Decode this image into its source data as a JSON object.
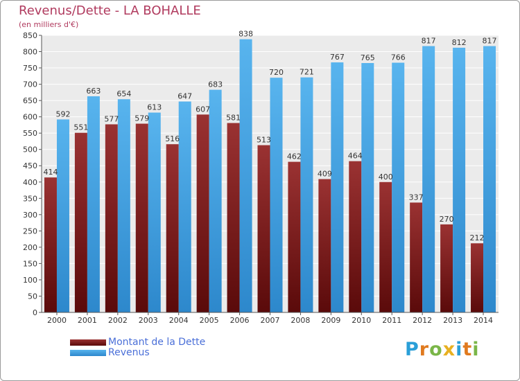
{
  "header": {
    "title": "Revenus/Dette - LA BOHALLE",
    "subtitle": "(en milliers d'€)"
  },
  "chart_data": {
    "type": "bar",
    "categories": [
      "2000",
      "2001",
      "2002",
      "2003",
      "2004",
      "2005",
      "2006",
      "2007",
      "2008",
      "2009",
      "2010",
      "2011",
      "2012",
      "2013",
      "2014"
    ],
    "series": [
      {
        "name": "Montant de la Dette",
        "color": "#8b2a2a",
        "values": [
          414,
          551,
          577,
          579,
          516,
          607,
          581,
          513,
          462,
          409,
          464,
          400,
          337,
          270,
          212
        ]
      },
      {
        "name": "Revenus",
        "color": "#4aa8e8",
        "values": [
          592,
          663,
          654,
          613,
          647,
          683,
          838,
          720,
          721,
          767,
          765,
          766,
          817,
          812,
          817
        ]
      }
    ],
    "ylim": [
      0,
      850
    ],
    "yticks": [
      0,
      50,
      100,
      150,
      200,
      250,
      300,
      350,
      400,
      450,
      500,
      550,
      600,
      650,
      700,
      750,
      800,
      850
    ],
    "grid": true,
    "legend_position": "bottom-left"
  },
  "logo": {
    "letters": [
      "P",
      "r",
      "o",
      "x",
      "i",
      "t",
      "i"
    ],
    "colors": [
      "#2a9fd8",
      "#e07a1f",
      "#7ab648",
      "#e8b020",
      "#2a9fd8",
      "#e07a1f",
      "#7ab648"
    ]
  }
}
